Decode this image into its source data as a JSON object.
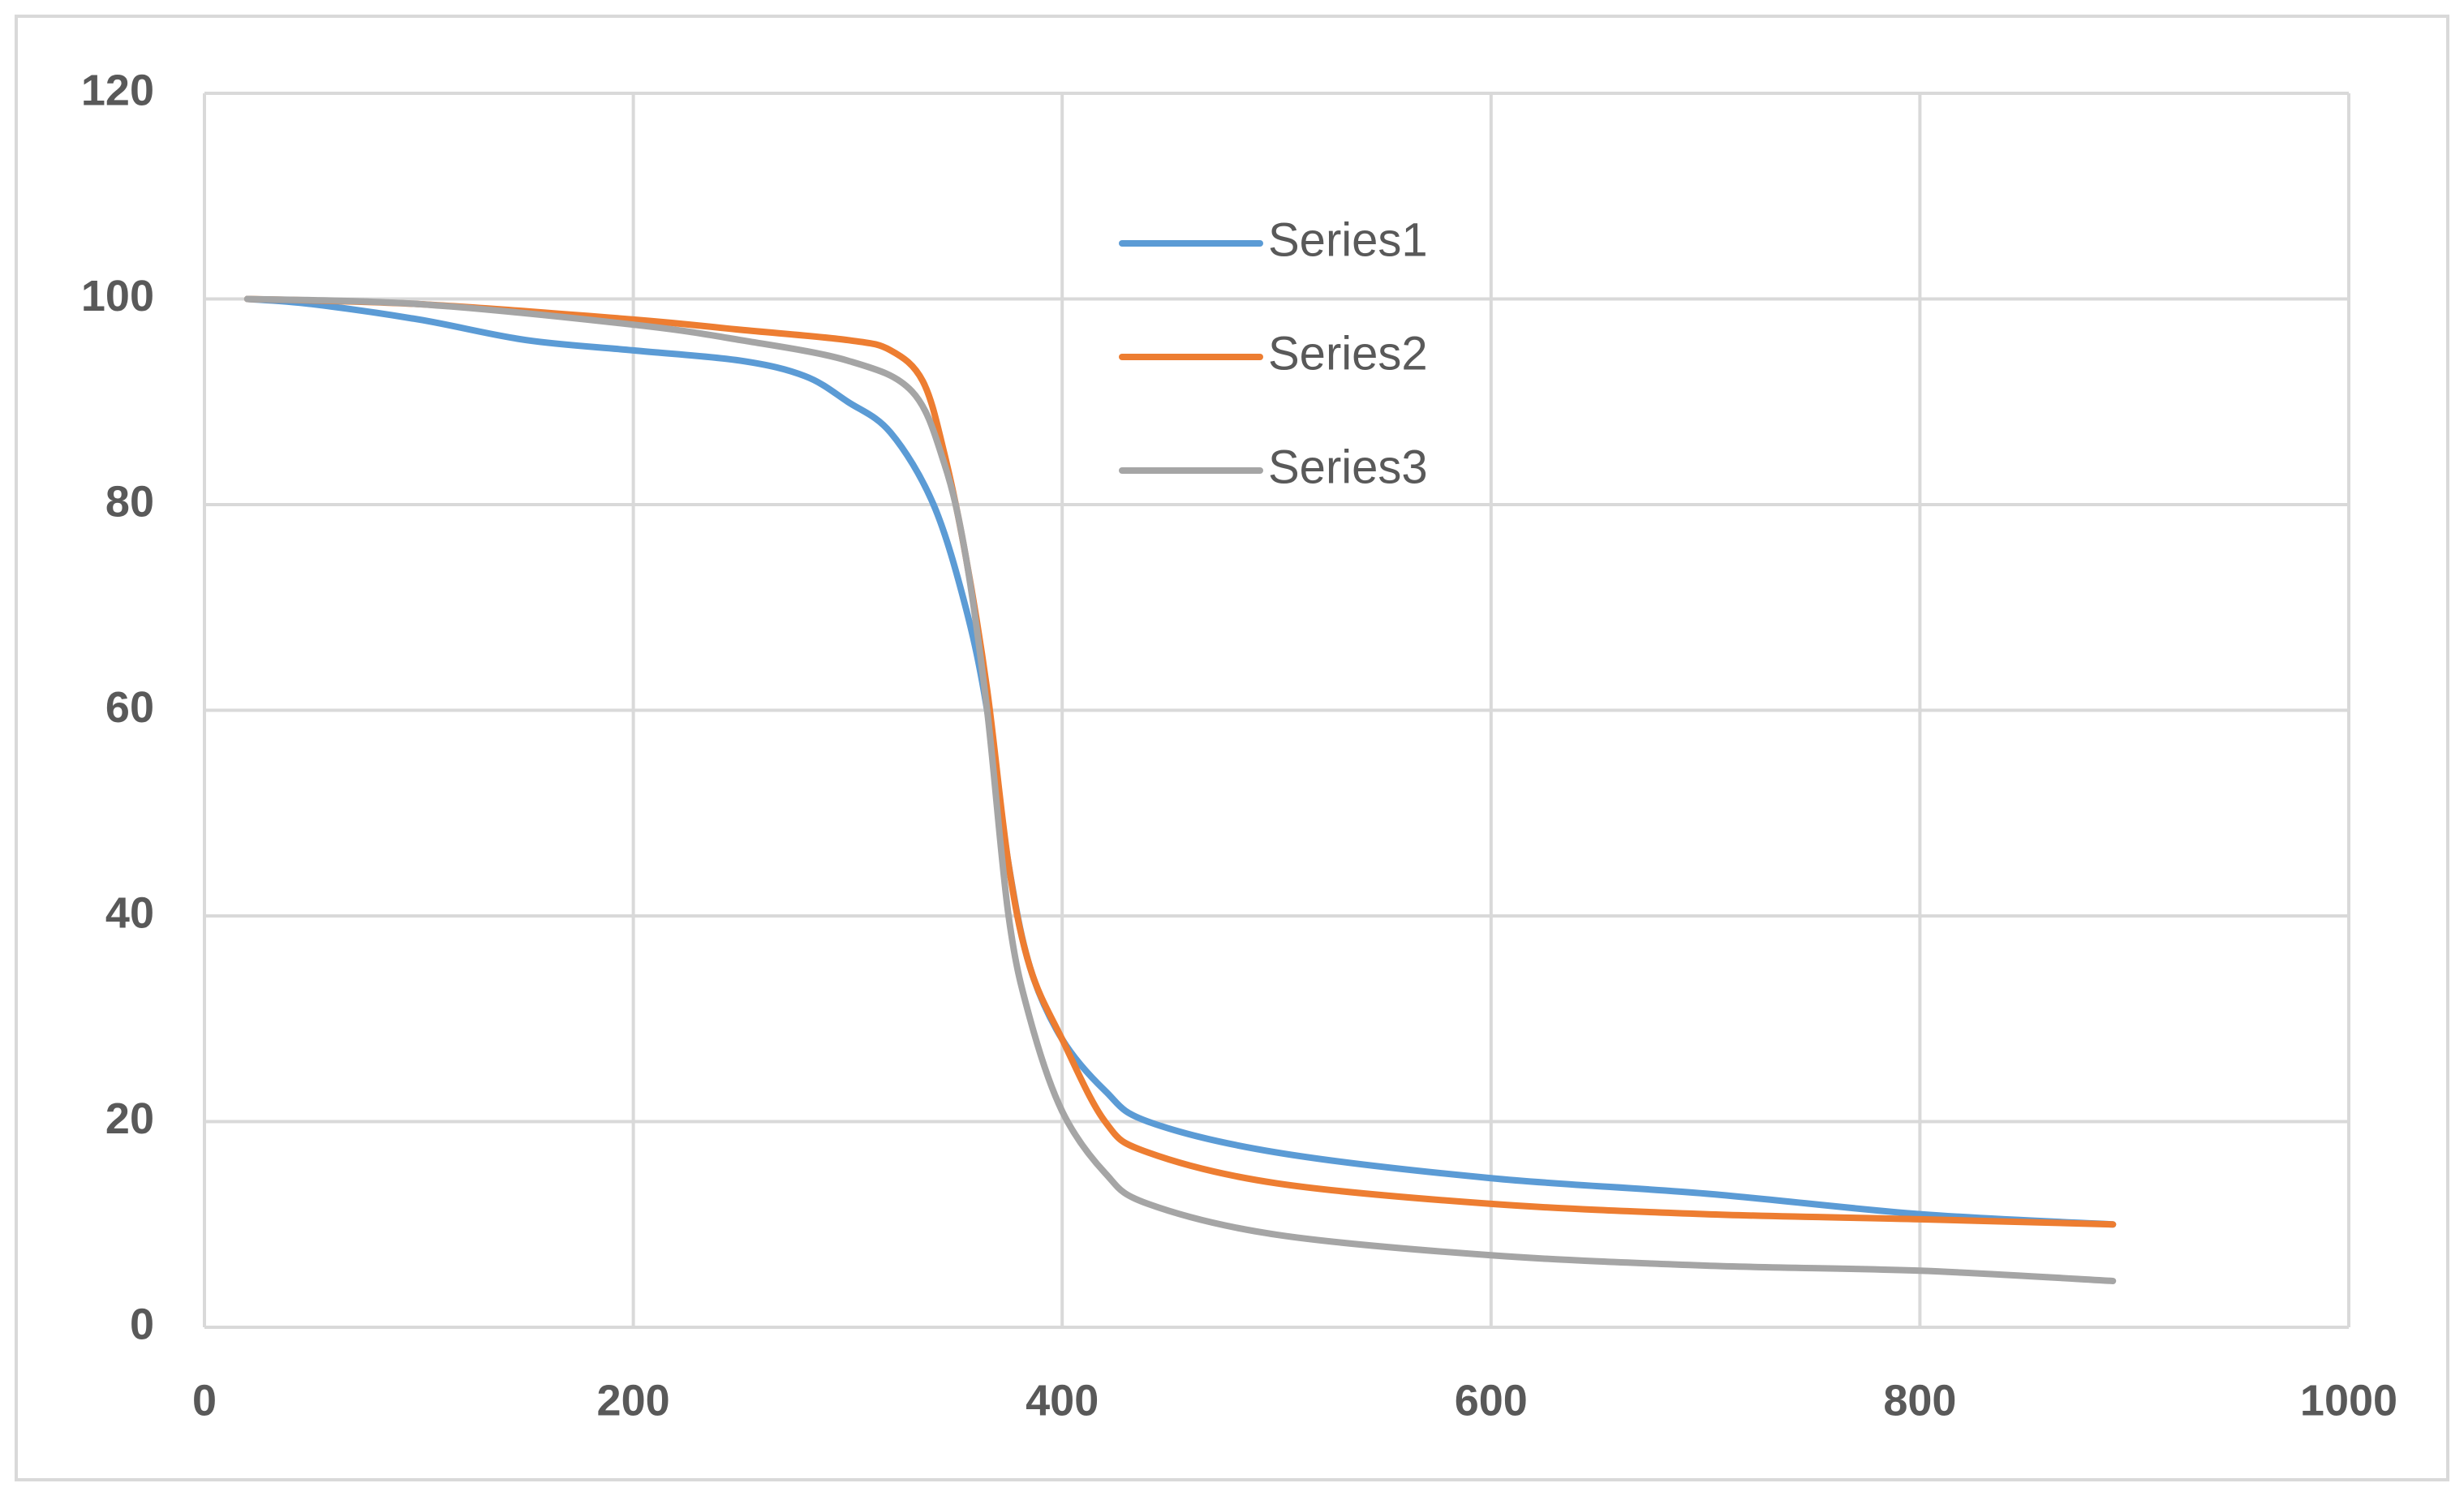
{
  "chart_data": {
    "type": "line",
    "xlim": [
      0,
      1000
    ],
    "xticks": [
      0,
      200,
      400,
      600,
      800,
      1000
    ],
    "ylim": [
      0,
      120
    ],
    "yticks": [
      0,
      20,
      40,
      60,
      80,
      100,
      120
    ],
    "grid": true,
    "legend": "top",
    "series": [
      {
        "name": "Series1",
        "color": "#5b9bd5",
        "x": [
          20,
          50,
          100,
          150,
          200,
          250,
          280,
          300,
          320,
          340,
          355,
          365,
          375,
          385,
          400,
          420,
          440,
          500,
          600,
          700,
          800,
          890
        ],
        "values": [
          100,
          99.5,
          98,
          96,
          95,
          94,
          92.5,
          90,
          87,
          80,
          70,
          60,
          45,
          35,
          28,
          23,
          20,
          17,
          14.5,
          13,
          11,
          10
        ]
      },
      {
        "name": "Series2",
        "color": "#ed7d31",
        "x": [
          20,
          100,
          200,
          250,
          300,
          320,
          335,
          345,
          355,
          365,
          375,
          385,
          400,
          420,
          440,
          500,
          600,
          700,
          800,
          890
        ],
        "values": [
          100,
          99.5,
          98,
          97,
          96,
          95,
          92,
          85,
          75,
          62,
          45,
          35,
          28,
          20,
          17,
          14,
          12,
          11,
          10.5,
          10
        ]
      },
      {
        "name": "Series3",
        "color": "#a5a5a5",
        "x": [
          20,
          100,
          200,
          250,
          300,
          330,
          345,
          355,
          365,
          375,
          385,
          400,
          420,
          440,
          500,
          600,
          700,
          800,
          890
        ],
        "values": [
          100,
          99.5,
          97.5,
          96,
          94,
          91,
          84,
          75,
          60,
          40,
          30,
          21,
          15,
          12,
          9,
          7,
          6,
          5.5,
          4.5
        ]
      }
    ]
  }
}
